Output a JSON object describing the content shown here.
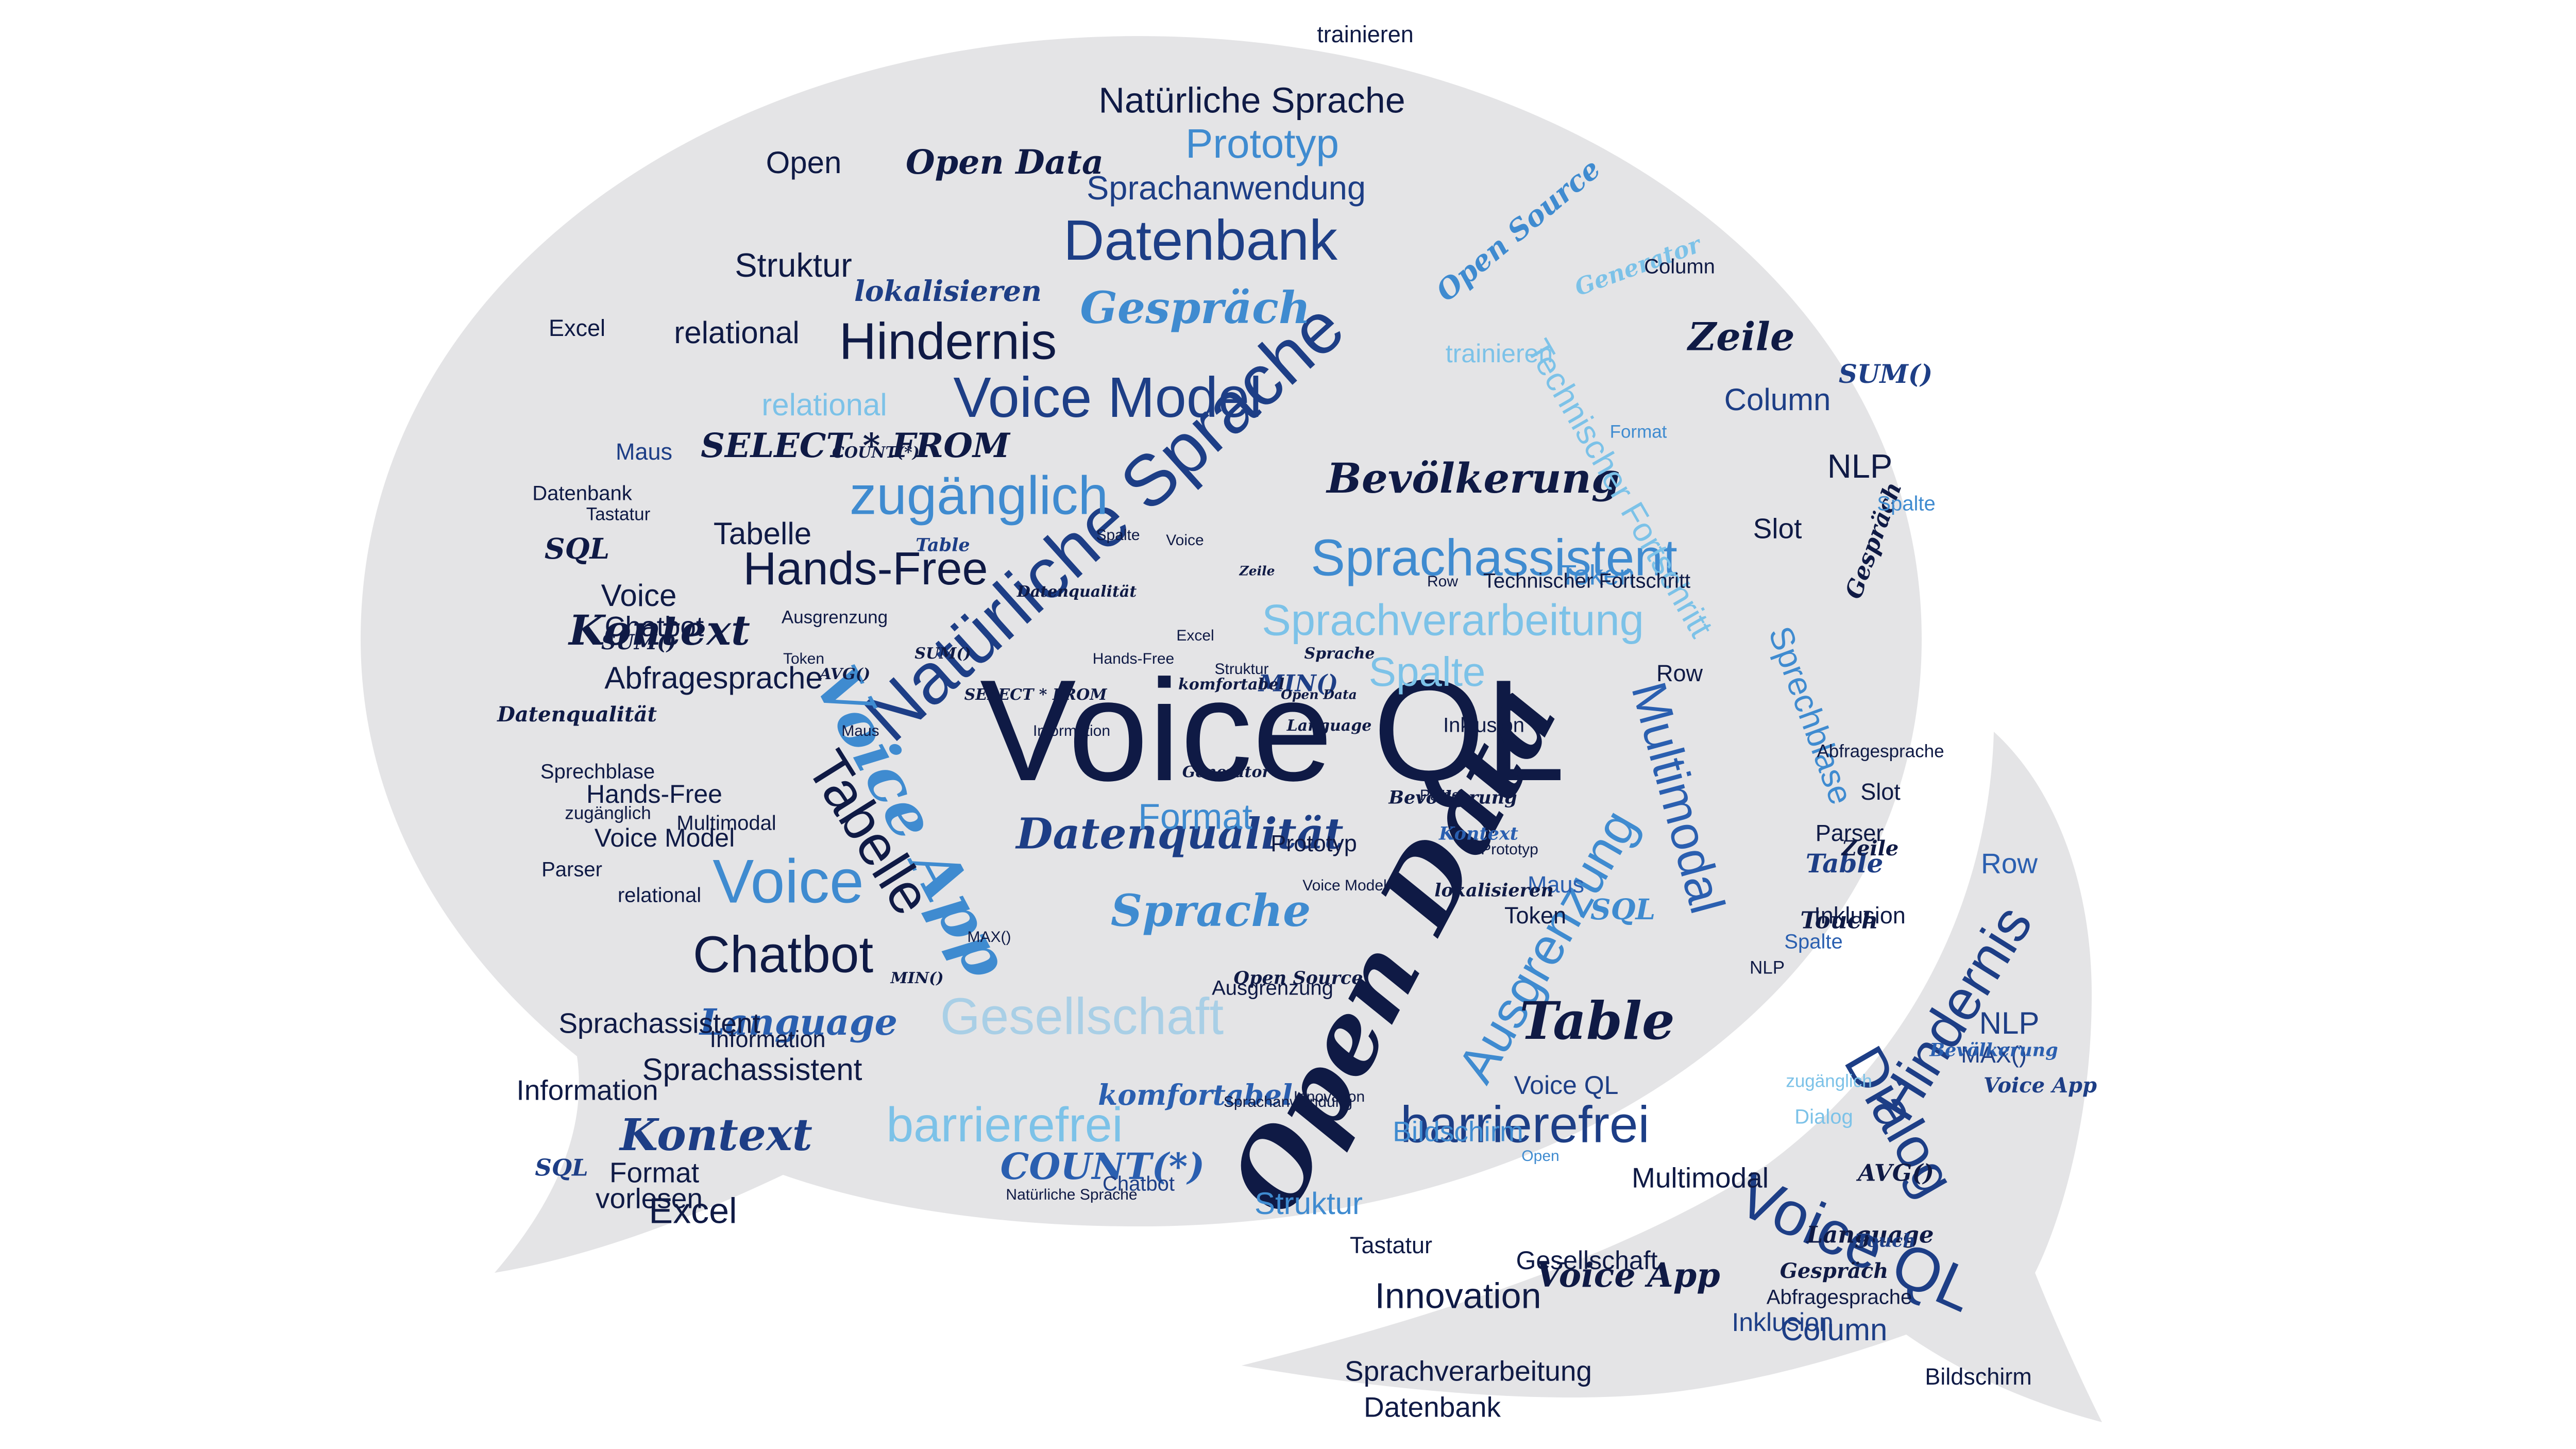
{
  "colors": {
    "background": "#ffffff",
    "bubble": "#e4e4e6",
    "palette": [
      "#0f1a45",
      "#1d3e86",
      "#2a5fb0",
      "#3f8bd0",
      "#7cc2e8",
      "#a9cfe6"
    ]
  },
  "words": [
    {
      "t": "Voice QL",
      "s": "sans",
      "c": 0
    },
    {
      "t": "Open Data",
      "s": "script",
      "c": 0
    },
    {
      "t": "Natürliche Sprache",
      "s": "sans",
      "c": 1
    },
    {
      "t": "Voice App",
      "s": "script",
      "c": 3
    },
    {
      "t": "Tabelle",
      "s": "sans",
      "c": 0
    },
    {
      "t": "Multimodal",
      "s": "sans",
      "c": 2
    },
    {
      "t": "Ausgrenzung",
      "s": "sans",
      "c": 3
    },
    {
      "t": "Hindernis",
      "s": "sans",
      "c": 1
    },
    {
      "t": "Dialog",
      "s": "sans",
      "c": 1
    },
    {
      "t": "Voice QL",
      "s": "sans",
      "c": 1
    },
    {
      "t": "Voice Model",
      "s": "sans",
      "c": 1
    },
    {
      "t": "zugänglich",
      "s": "sans",
      "c": 3
    },
    {
      "t": "Hands-Free",
      "s": "sans",
      "c": 0
    },
    {
      "t": "Sprachassistent",
      "s": "sans",
      "c": 3
    },
    {
      "t": "Sprachverarbeitung",
      "s": "sans",
      "c": 4
    },
    {
      "t": "Bevölkerung",
      "s": "script",
      "c": 0
    },
    {
      "t": "Datenqualität",
      "s": "script",
      "c": 1
    },
    {
      "t": "Sprache",
      "s": "script",
      "c": 3
    },
    {
      "t": "Gesellschaft",
      "s": "sans",
      "c": 5
    },
    {
      "t": "barrierefrei",
      "s": "sans",
      "c": 4
    },
    {
      "t": "Kontext",
      "s": "script",
      "c": 0
    },
    {
      "t": "Kontext",
      "s": "script",
      "c": 1
    },
    {
      "t": "Chatbot",
      "s": "sans",
      "c": 0
    },
    {
      "t": "Voice",
      "s": "sans",
      "c": 3
    },
    {
      "t": "Table",
      "s": "script",
      "c": 0
    },
    {
      "t": "COUNT(*)",
      "s": "script",
      "c": 2
    },
    {
      "t": "Datenbank",
      "s": "sans",
      "c": 1
    },
    {
      "t": "Prototyp",
      "s": "sans",
      "c": 3
    },
    {
      "t": "Open Data",
      "s": "script",
      "c": 0
    },
    {
      "t": "Natürliche Sprache",
      "s": "sans",
      "c": 0
    },
    {
      "t": "Sprachanwendung",
      "s": "sans",
      "c": 1
    },
    {
      "t": "Gespräch",
      "s": "script",
      "c": 3
    },
    {
      "t": "Hindernis",
      "s": "sans",
      "c": 0
    },
    {
      "t": "Zeile",
      "s": "script",
      "c": 0
    },
    {
      "t": "Language",
      "s": "script",
      "c": 2
    },
    {
      "t": "Spalte",
      "s": "sans",
      "c": 4
    },
    {
      "t": "Format",
      "s": "sans",
      "c": 3
    },
    {
      "t": "Open Source",
      "s": "script",
      "c": 3
    },
    {
      "t": "SELECT * FROM",
      "s": "script",
      "c": 0
    },
    {
      "t": "lokalisieren",
      "s": "script",
      "c": 1
    },
    {
      "t": "Struktur",
      "s": "sans",
      "c": 0
    },
    {
      "t": "Excel",
      "s": "sans",
      "c": 0
    },
    {
      "t": "Abfragesprache",
      "s": "sans",
      "c": 0
    },
    {
      "t": "relational",
      "s": "sans",
      "c": 0
    },
    {
      "t": "relational",
      "s": "sans",
      "c": 4
    },
    {
      "t": "Column",
      "s": "sans",
      "c": 1
    },
    {
      "t": "NLP",
      "s": "sans",
      "c": 0
    },
    {
      "t": "barrierefrei",
      "s": "sans",
      "c": 1
    },
    {
      "t": "Technischer Fortschritt",
      "s": "sans",
      "c": 4
    },
    {
      "t": "Sprechblase",
      "s": "sans",
      "c": 3
    },
    {
      "t": "Innovation",
      "s": "sans",
      "c": 0
    },
    {
      "t": "Sprachverarbeitung",
      "s": "sans",
      "c": 0
    },
    {
      "t": "Datenbank",
      "s": "sans",
      "c": 0
    },
    {
      "t": "Column",
      "s": "sans",
      "c": 1
    },
    {
      "t": "Row",
      "s": "sans",
      "c": 2
    },
    {
      "t": "Table",
      "s": "script",
      "c": 1
    },
    {
      "t": "Touch",
      "s": "script",
      "c": 0
    },
    {
      "t": "Multimodal",
      "s": "sans",
      "c": 0
    },
    {
      "t": "Bildschirm",
      "s": "sans",
      "c": 0
    },
    {
      "t": "Parser",
      "s": "sans",
      "c": 0
    },
    {
      "t": "Inklusion",
      "s": "sans",
      "c": 1
    },
    {
      "t": "Gesellschaft",
      "s": "sans",
      "c": 0
    },
    {
      "t": "Voice App",
      "s": "script",
      "c": 0
    },
    {
      "t": "AVG()",
      "s": "script",
      "c": 0
    },
    {
      "t": "Language",
      "s": "script",
      "c": 0
    },
    {
      "t": "NLP",
      "s": "sans",
      "c": 1
    },
    {
      "t": "MAX()",
      "s": "sans",
      "c": 1
    },
    {
      "t": "Dialog",
      "s": "sans",
      "c": 4
    },
    {
      "t": "zugänglich",
      "s": "sans",
      "c": 4
    },
    {
      "t": "Bevölkerung",
      "s": "script",
      "c": 2
    },
    {
      "t": "Token",
      "s": "sans",
      "c": 0
    },
    {
      "t": "Maus",
      "s": "sans",
      "c": 2
    },
    {
      "t": "SQL",
      "s": "script",
      "c": 3
    },
    {
      "t": "SQL",
      "s": "script",
      "c": 0
    },
    {
      "t": "SQL",
      "s": "script",
      "c": 1
    },
    {
      "t": "Slot",
      "s": "sans",
      "c": 0
    },
    {
      "t": "vorlesen",
      "s": "sans",
      "c": 0
    },
    {
      "t": "Sprachassistent",
      "s": "sans",
      "c": 0
    },
    {
      "t": "Information",
      "s": "sans",
      "c": 0
    },
    {
      "t": "Datenqualität",
      "s": "script",
      "c": 0
    },
    {
      "t": "Struktur",
      "s": "sans",
      "c": 3
    },
    {
      "t": "komfortabel",
      "s": "script",
      "c": 2
    },
    {
      "t": "Generator",
      "s": "script",
      "c": 4
    },
    {
      "t": "SUM()",
      "s": "script",
      "c": 0
    },
    {
      "t": "MIN()",
      "s": "script",
      "c": 1
    },
    {
      "t": "Ausgrenzung",
      "s": "sans",
      "c": 0
    },
    {
      "t": "Inklusion",
      "s": "sans",
      "c": 0
    },
    {
      "t": "trainieren",
      "s": "sans",
      "c": 0
    },
    {
      "t": "Tastatur",
      "s": "sans",
      "c": 0
    },
    {
      "t": "Voice",
      "s": "sans",
      "c": 0
    },
    {
      "t": "Prototyp",
      "s": "sans",
      "c": 0
    },
    {
      "t": "Open",
      "s": "sans",
      "c": 0
    },
    {
      "t": "Chatbot",
      "s": "sans",
      "c": 0
    },
    {
      "t": "Hands-Free",
      "s": "sans",
      "c": 0
    },
    {
      "t": "Voice Model",
      "s": "sans",
      "c": 0
    },
    {
      "t": "Sprachassistent",
      "s": "sans",
      "c": 0
    },
    {
      "t": "Format",
      "s": "sans",
      "c": 0
    },
    {
      "t": "Excel",
      "s": "sans",
      "c": 0
    },
    {
      "t": "Maus",
      "s": "sans",
      "c": 1
    },
    {
      "t": "Tabelle",
      "s": "sans",
      "c": 0
    },
    {
      "t": "Row",
      "s": "sans",
      "c": 0
    },
    {
      "t": "Gespräch",
      "s": "script",
      "c": 0
    },
    {
      "t": "Zeile",
      "s": "script",
      "c": 0
    },
    {
      "t": "Spalte",
      "s": "sans",
      "c": 2
    },
    {
      "t": "Token",
      "s": "sans",
      "c": 3
    },
    {
      "t": "Parser",
      "s": "sans",
      "c": 0
    },
    {
      "t": "Slot",
      "s": "sans",
      "c": 0
    },
    {
      "t": "Voice QL",
      "s": "sans",
      "c": 1
    },
    {
      "t": "trainieren",
      "s": "sans",
      "c": 4
    },
    {
      "t": "Inklusion",
      "s": "sans",
      "c": 0
    },
    {
      "t": "Column",
      "s": "sans",
      "c": 0
    },
    {
      "t": "Format",
      "s": "sans",
      "c": 3
    },
    {
      "t": "Spalte",
      "s": "sans",
      "c": 3
    },
    {
      "t": "Abfragesprache",
      "s": "sans",
      "c": 0
    },
    {
      "t": "Technischer Fortschritt",
      "s": "sans",
      "c": 0
    },
    {
      "t": "SUM()",
      "s": "script",
      "c": 1
    },
    {
      "t": "Chatbot",
      "s": "sans",
      "c": 1
    },
    {
      "t": "Bildschirm",
      "s": "sans",
      "c": 3
    },
    {
      "t": "Information",
      "s": "sans",
      "c": 0
    },
    {
      "t": "Datenbank",
      "s": "sans",
      "c": 0
    },
    {
      "t": "Open",
      "s": "sans",
      "c": 3
    },
    {
      "t": "relational",
      "s": "sans",
      "c": 0
    },
    {
      "t": "Spalte",
      "s": "sans",
      "c": 0
    },
    {
      "t": "zugänglich",
      "s": "sans",
      "c": 0
    },
    {
      "t": "Hands-Free",
      "s": "sans",
      "c": 0
    },
    {
      "t": "Multimodal",
      "s": "sans",
      "c": 0
    },
    {
      "t": "Sprachanwendung",
      "s": "sans",
      "c": 0
    },
    {
      "t": "Ausgrenzung",
      "s": "sans",
      "c": 0
    },
    {
      "t": "Innovation",
      "s": "sans",
      "c": 0
    },
    {
      "t": "Sprechblase",
      "s": "sans",
      "c": 0
    },
    {
      "t": "NLP",
      "s": "sans",
      "c": 0
    },
    {
      "t": "Parser",
      "s": "sans",
      "c": 0
    },
    {
      "t": "Tastatur",
      "s": "sans",
      "c": 0
    },
    {
      "t": "Natürliche Sprache",
      "s": "sans",
      "c": 0
    },
    {
      "t": "Abfragesprache",
      "s": "sans",
      "c": 0
    },
    {
      "t": "Gespräch",
      "s": "script",
      "c": 0
    },
    {
      "t": "Voice App",
      "s": "script",
      "c": 1
    },
    {
      "t": "Touch",
      "s": "script",
      "c": 1
    },
    {
      "t": "Table",
      "s": "script",
      "c": 1
    },
    {
      "t": "Open Source",
      "s": "script",
      "c": 0
    },
    {
      "t": "Kontext",
      "s": "script",
      "c": 2
    },
    {
      "t": "lokalisieren",
      "s": "script",
      "c": 0
    },
    {
      "t": "Generator",
      "s": "script",
      "c": 0
    },
    {
      "t": "komfortabel",
      "s": "script",
      "c": 0
    },
    {
      "t": "Bevölkerung",
      "s": "script",
      "c": 0
    },
    {
      "t": "Sprache",
      "s": "script",
      "c": 0
    },
    {
      "t": "Zeile",
      "s": "script",
      "c": 0
    },
    {
      "t": "Language",
      "s": "script",
      "c": 0
    },
    {
      "t": "Datenqualität",
      "s": "script",
      "c": 0
    },
    {
      "t": "SELECT * FROM",
      "s": "script",
      "c": 0
    },
    {
      "t": "COUNT(*)",
      "s": "script",
      "c": 0
    },
    {
      "t": "MAX()",
      "s": "sans",
      "c": 0
    },
    {
      "t": "MIN()",
      "s": "script",
      "c": 0
    },
    {
      "t": "AVG()",
      "s": "script",
      "c": 0
    },
    {
      "t": "SUM()",
      "s": "script",
      "c": 0
    },
    {
      "t": "Open Data",
      "s": "script",
      "c": 0
    },
    {
      "t": "Voice",
      "s": "sans",
      "c": 0
    },
    {
      "t": "Voice Model",
      "s": "sans",
      "c": 0
    },
    {
      "t": "Prototyp",
      "s": "sans",
      "c": 0
    },
    {
      "t": "Information",
      "s": "sans",
      "c": 0
    },
    {
      "t": "Excel",
      "s": "sans",
      "c": 0
    },
    {
      "t": "Struktur",
      "s": "sans",
      "c": 0
    },
    {
      "t": "Row",
      "s": "sans",
      "c": 0
    },
    {
      "t": "Maus",
      "s": "sans",
      "c": 0
    },
    {
      "t": "Token",
      "s": "sans",
      "c": 0
    },
    {
      "t": "Slot",
      "s": "sans",
      "c": 0
    },
    {
      "t": "Datenbank",
      "s": "sans",
      "c": 0
    }
  ]
}
